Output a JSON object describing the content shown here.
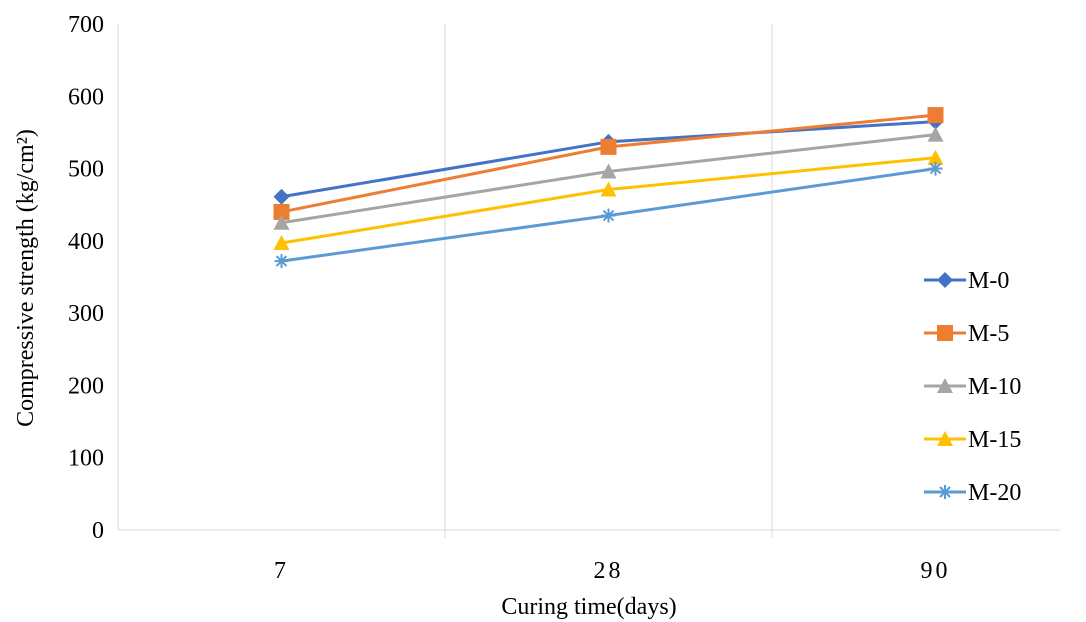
{
  "chart_data": {
    "type": "line",
    "title": "",
    "xlabel": "Curing time(days)",
    "ylabel": "Compressive strength (kg/cm²)",
    "categories": [
      "7",
      "28",
      "90"
    ],
    "ylim": [
      0,
      700
    ],
    "yticks": [
      "0",
      "100",
      "200",
      "300",
      "400",
      "500",
      "600",
      "700"
    ],
    "grid": "vertical",
    "legend": "right",
    "series": [
      {
        "name": "M-0",
        "values": [
          461,
          537,
          565
        ],
        "color": "#4472c4",
        "marker": "diamond"
      },
      {
        "name": "M-5",
        "values": [
          440,
          530,
          574
        ],
        "color": "#ed7d31",
        "marker": "square"
      },
      {
        "name": "M-10",
        "values": [
          425,
          496,
          547
        ],
        "color": "#a5a5a5",
        "marker": "triangle"
      },
      {
        "name": "M-15",
        "values": [
          397,
          471,
          515
        ],
        "color": "#ffc000",
        "marker": "triangle"
      },
      {
        "name": "M-20",
        "values": [
          372,
          435,
          500
        ],
        "color": "#5b9bd5",
        "marker": "star"
      }
    ]
  }
}
